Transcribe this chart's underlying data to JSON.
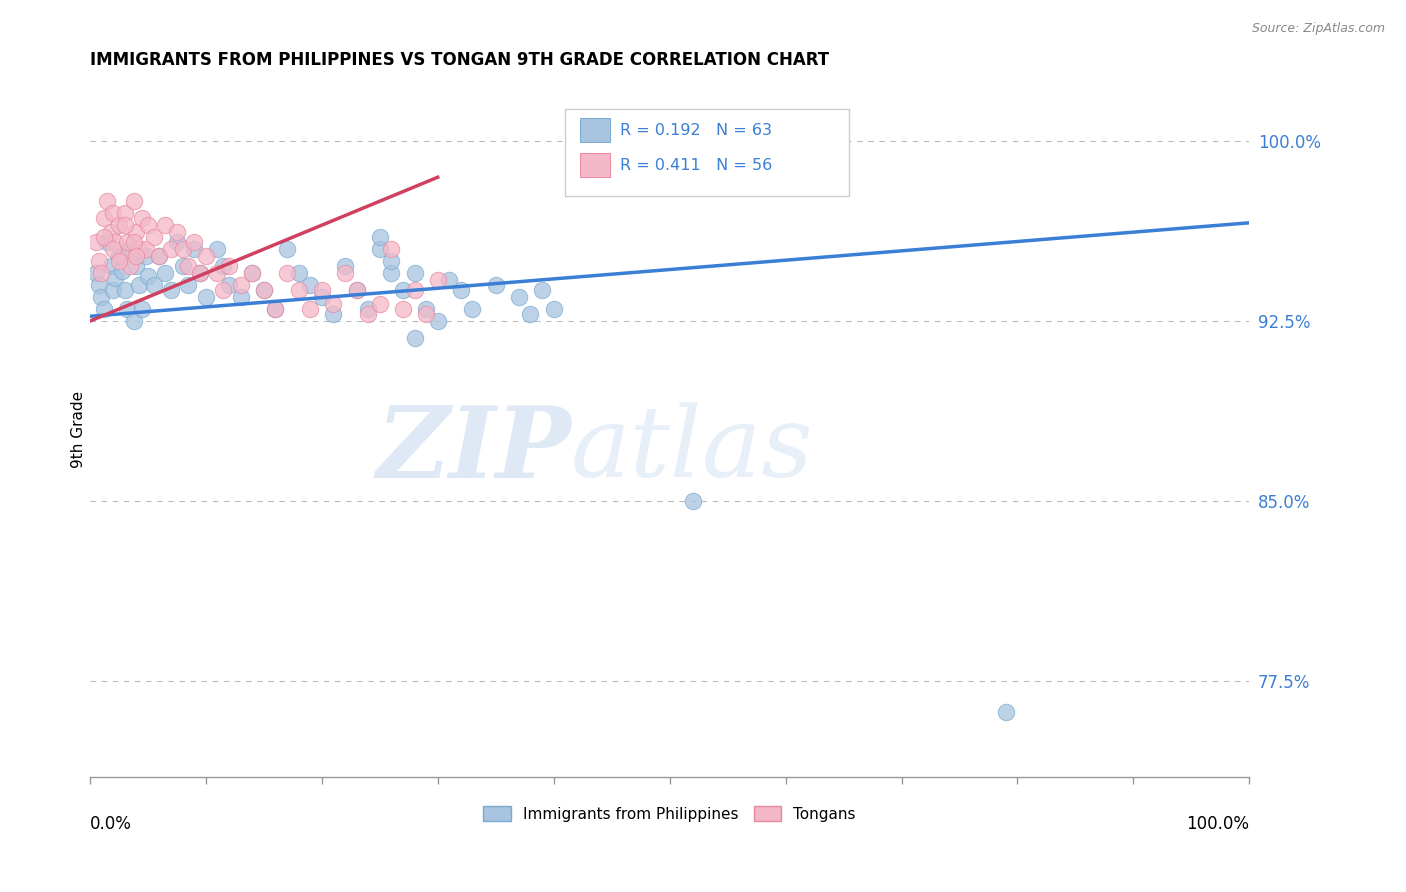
{
  "title": "IMMIGRANTS FROM PHILIPPINES VS TONGAN 9TH GRADE CORRELATION CHART",
  "source": "Source: ZipAtlas.com",
  "ylabel": "9th Grade",
  "ylabel_right_labels": [
    "77.5%",
    "85.0%",
    "92.5%",
    "100.0%"
  ],
  "ylabel_right_values": [
    0.775,
    0.85,
    0.925,
    1.0
  ],
  "ylim": [
    0.735,
    1.025
  ],
  "xlim": [
    0.0,
    1.0
  ],
  "R_blue": 0.192,
  "N_blue": 63,
  "R_pink": 0.411,
  "N_pink": 56,
  "legend_label_blue": "Immigrants from Philippines",
  "legend_label_pink": "Tongans",
  "watermark_zip": "ZIP",
  "watermark_atlas": "atlas",
  "blue_color": "#a8c4e0",
  "blue_edge": "#7aaacf",
  "pink_color": "#f4b8c8",
  "pink_edge": "#e888a0",
  "blue_line_color": "#3a7fd5",
  "pink_line_color": "#d04060",
  "grid_color": "#bbbbbb",
  "blue_scatter_x": [
    0.005,
    0.008,
    0.01,
    0.012,
    0.015,
    0.018,
    0.02,
    0.022,
    0.025,
    0.028,
    0.03,
    0.032,
    0.035,
    0.038,
    0.04,
    0.042,
    0.045,
    0.048,
    0.05,
    0.055,
    0.06,
    0.065,
    0.07,
    0.075,
    0.08,
    0.085,
    0.09,
    0.095,
    0.1,
    0.11,
    0.115,
    0.12,
    0.13,
    0.14,
    0.15,
    0.16,
    0.17,
    0.18,
    0.19,
    0.2,
    0.21,
    0.22,
    0.23,
    0.24,
    0.25,
    0.26,
    0.27,
    0.28,
    0.29,
    0.3,
    0.31,
    0.32,
    0.33,
    0.35,
    0.37,
    0.38,
    0.39,
    0.4,
    0.25,
    0.26,
    0.52,
    0.28,
    0.79
  ],
  "blue_scatter_y": [
    0.945,
    0.94,
    0.935,
    0.93,
    0.958,
    0.948,
    0.938,
    0.943,
    0.952,
    0.946,
    0.938,
    0.93,
    0.955,
    0.925,
    0.948,
    0.94,
    0.93,
    0.952,
    0.944,
    0.94,
    0.952,
    0.945,
    0.938,
    0.958,
    0.948,
    0.94,
    0.955,
    0.945,
    0.935,
    0.955,
    0.948,
    0.94,
    0.935,
    0.945,
    0.938,
    0.93,
    0.955,
    0.945,
    0.94,
    0.935,
    0.928,
    0.948,
    0.938,
    0.93,
    0.955,
    0.945,
    0.938,
    0.945,
    0.93,
    0.925,
    0.942,
    0.938,
    0.93,
    0.94,
    0.935,
    0.928,
    0.938,
    0.93,
    0.96,
    0.95,
    0.85,
    0.918,
    0.762
  ],
  "pink_scatter_x": [
    0.005,
    0.008,
    0.01,
    0.012,
    0.015,
    0.018,
    0.02,
    0.022,
    0.025,
    0.028,
    0.03,
    0.032,
    0.035,
    0.038,
    0.04,
    0.042,
    0.045,
    0.048,
    0.05,
    0.055,
    0.06,
    0.065,
    0.07,
    0.075,
    0.08,
    0.085,
    0.09,
    0.095,
    0.1,
    0.11,
    0.115,
    0.12,
    0.13,
    0.14,
    0.15,
    0.16,
    0.17,
    0.18,
    0.19,
    0.2,
    0.21,
    0.22,
    0.23,
    0.24,
    0.25,
    0.26,
    0.27,
    0.28,
    0.29,
    0.3,
    0.012,
    0.02,
    0.025,
    0.03,
    0.038,
    0.04
  ],
  "pink_scatter_y": [
    0.958,
    0.95,
    0.945,
    0.968,
    0.975,
    0.962,
    0.97,
    0.958,
    0.965,
    0.952,
    0.97,
    0.958,
    0.948,
    0.975,
    0.962,
    0.955,
    0.968,
    0.955,
    0.965,
    0.96,
    0.952,
    0.965,
    0.955,
    0.962,
    0.955,
    0.948,
    0.958,
    0.945,
    0.952,
    0.945,
    0.938,
    0.948,
    0.94,
    0.945,
    0.938,
    0.93,
    0.945,
    0.938,
    0.93,
    0.938,
    0.932,
    0.945,
    0.938,
    0.928,
    0.932,
    0.955,
    0.93,
    0.938,
    0.928,
    0.942,
    0.96,
    0.955,
    0.95,
    0.965,
    0.958,
    0.952
  ],
  "blue_trend_x": [
    0.0,
    1.0
  ],
  "blue_trend_y": [
    0.927,
    0.966
  ],
  "pink_trend_x": [
    0.0,
    0.3
  ],
  "pink_trend_y": [
    0.925,
    0.985
  ]
}
